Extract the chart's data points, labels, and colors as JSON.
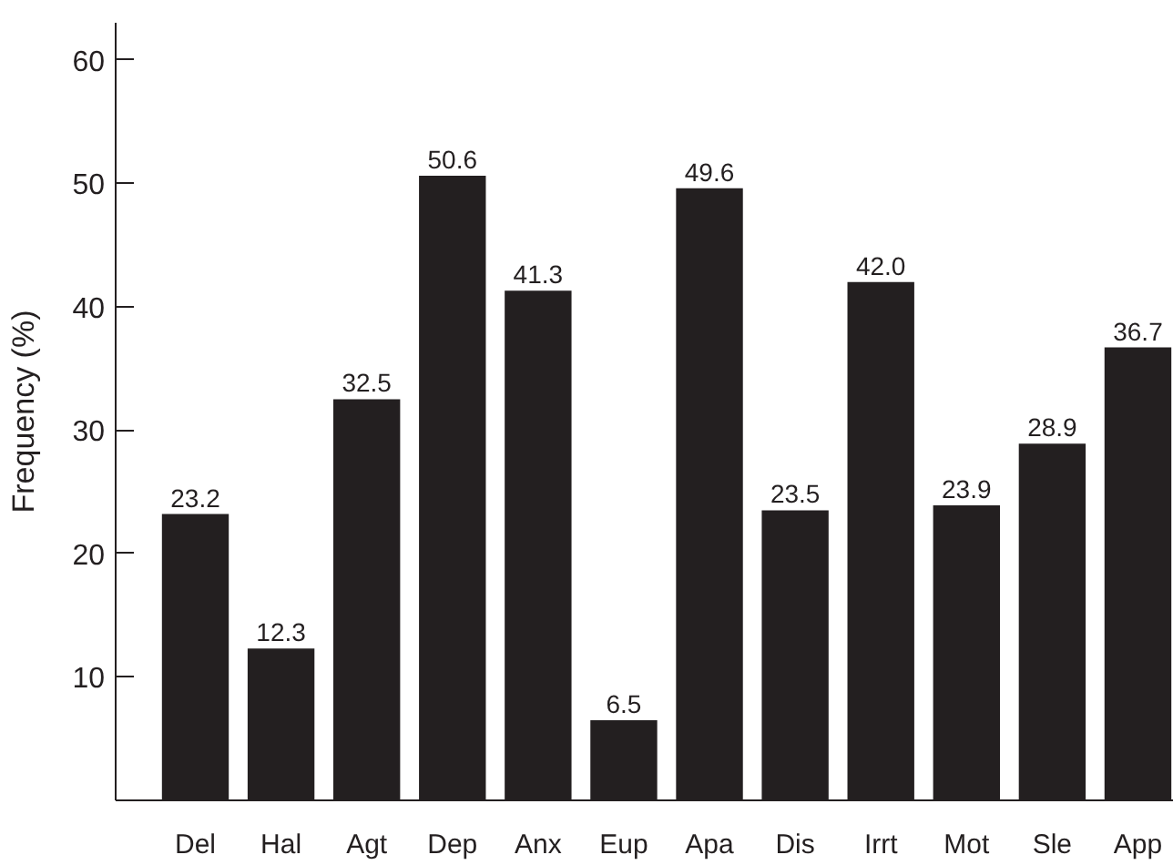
{
  "chart_data": {
    "type": "bar",
    "ylabel": "Frequency (%)",
    "categories": [
      "Del",
      "Hal",
      "Agt",
      "Dep",
      "Anx",
      "Eup",
      "Apa",
      "Dis",
      "Irrt",
      "Mot",
      "Sle",
      "App"
    ],
    "values": [
      23.2,
      12.3,
      32.5,
      50.6,
      41.3,
      6.5,
      49.6,
      23.5,
      42.0,
      23.9,
      28.9,
      36.7
    ],
    "value_labels": [
      "23.2",
      "12.3",
      "32.5",
      "50.6",
      "41.3",
      "6.5",
      "49.6",
      "23.5",
      "42.0",
      "23.9",
      "28.9",
      "36.7"
    ],
    "color": "#231f20",
    "ylim": [
      0,
      63
    ],
    "yticks": [
      10,
      20,
      30,
      40,
      50,
      60
    ],
    "grid": false
  }
}
